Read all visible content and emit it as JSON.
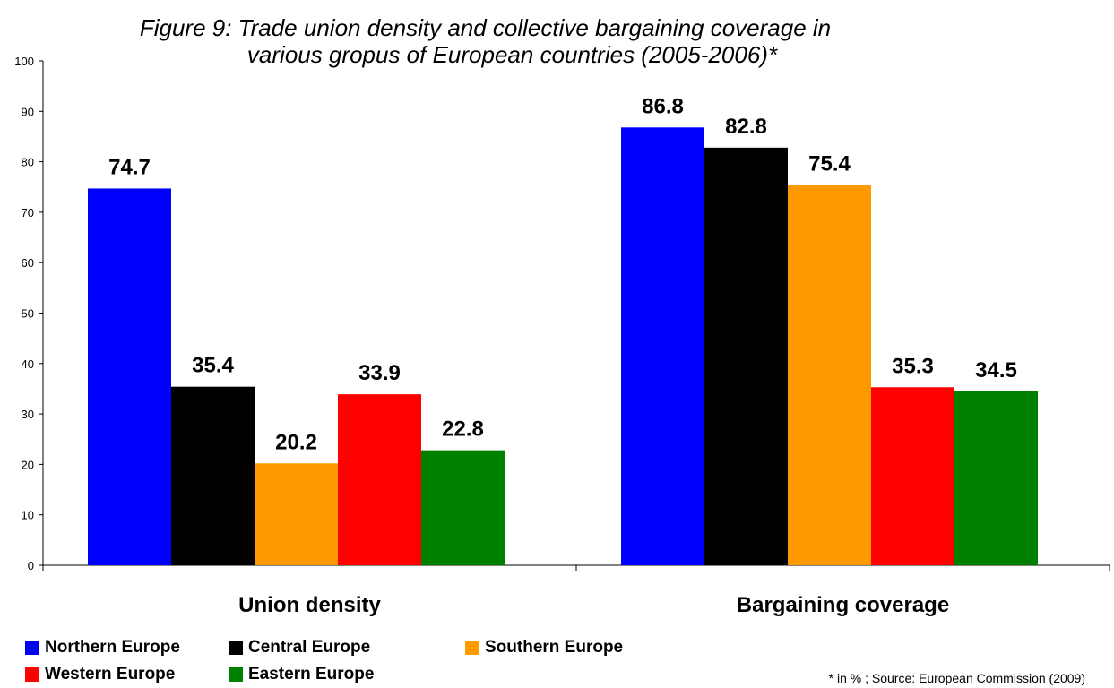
{
  "chart_data": {
    "type": "bar",
    "title_line1": "Figure 9:  Trade union density and collective bargaining coverage in",
    "title_line2": "various gropus of European countries (2005-2006)*",
    "categories": [
      "Union density",
      "Bargaining coverage"
    ],
    "series": [
      {
        "name": "Northern Europe",
        "color": "#0000ff",
        "values": [
          74.7,
          86.8
        ]
      },
      {
        "name": "Central Europe",
        "color": "#000000",
        "values": [
          35.4,
          82.8
        ]
      },
      {
        "name": "Southern Europe",
        "color": "#ff9900",
        "values": [
          20.2,
          75.4
        ]
      },
      {
        "name": "Western Europe",
        "color": "#ff0000",
        "values": [
          33.9,
          35.3
        ]
      },
      {
        "name": "Eastern Europe",
        "color": "#008000",
        "values": [
          22.8,
          34.5
        ]
      }
    ],
    "ylim": [
      0,
      100
    ],
    "yticks": [
      0,
      10,
      20,
      30,
      40,
      50,
      60,
      70,
      80,
      90,
      100
    ],
    "grid": false,
    "legend_position": "bottom",
    "source_note": "* in % ; Source: European Commission (2009)"
  }
}
